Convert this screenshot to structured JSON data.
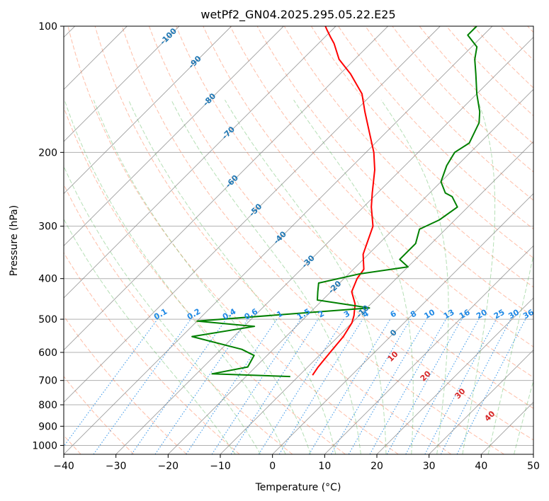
{
  "chart_data": {
    "type": "line",
    "title": "wetPf2_GN04.2025.295.05.22.E25",
    "xlabel": "Temperature (°C)",
    "ylabel": "Pressure (hPa)",
    "xlim": [
      -40,
      50
    ],
    "ylim": [
      1050,
      100
    ],
    "y_scale": "log",
    "grid": true,
    "x_ticks": [
      -40,
      -30,
      -20,
      -10,
      0,
      10,
      20,
      30,
      40,
      50
    ],
    "x_tick_labels": [
      "−40",
      "−30",
      "−20",
      "−10",
      "0",
      "10",
      "20",
      "30",
      "40",
      "50"
    ],
    "y_ticks": [
      100,
      200,
      300,
      400,
      500,
      600,
      700,
      800,
      900,
      1000
    ],
    "y_tick_labels": [
      "100",
      "200",
      "300",
      "400",
      "500",
      "600",
      "700",
      "800",
      "900",
      "1000"
    ],
    "series": [
      {
        "role": "temperature",
        "color": "#ff0000",
        "points": [
          [
            -7.5,
            680
          ],
          [
            -8,
            650
          ],
          [
            -8.5,
            600
          ],
          [
            -9,
            550
          ],
          [
            -10,
            510
          ],
          [
            -11,
            490
          ],
          [
            -13,
            460
          ],
          [
            -16,
            430
          ],
          [
            -17.5,
            400
          ],
          [
            -18,
            380
          ],
          [
            -21,
            350
          ],
          [
            -24.5,
            300
          ],
          [
            -28.5,
            270
          ],
          [
            -31,
            250
          ],
          [
            -35,
            220
          ],
          [
            -38.5,
            200
          ],
          [
            -43,
            180
          ],
          [
            -48,
            160
          ],
          [
            -52,
            145
          ],
          [
            -58,
            130
          ],
          [
            -63,
            120
          ],
          [
            -67,
            110
          ],
          [
            -69,
            106
          ],
          [
            -71,
            102
          ],
          [
            -72,
            100
          ]
        ]
      },
      {
        "role": "dewpoint",
        "color": "#008000",
        "points": [
          [
            -11.5,
            685
          ],
          [
            -27,
            675
          ],
          [
            -21.5,
            650
          ],
          [
            -22.5,
            610
          ],
          [
            -26,
            590
          ],
          [
            -38,
            550
          ],
          [
            -28,
            520
          ],
          [
            -40,
            505
          ],
          [
            -9.5,
            470
          ],
          [
            -21,
            450
          ],
          [
            -22.5,
            430
          ],
          [
            -24,
            410
          ],
          [
            -18,
            390
          ],
          [
            -10,
            375
          ],
          [
            -13,
            360
          ],
          [
            -13,
            330
          ],
          [
            -15,
            305
          ],
          [
            -13,
            290
          ],
          [
            -12,
            270
          ],
          [
            -15,
            255
          ],
          [
            -17,
            250
          ],
          [
            -20,
            235
          ],
          [
            -22,
            215
          ],
          [
            -23,
            200
          ],
          [
            -22,
            190
          ],
          [
            -24,
            170
          ],
          [
            -26,
            160
          ],
          [
            -30,
            145
          ],
          [
            -34,
            130
          ],
          [
            -37,
            120
          ],
          [
            -39,
            112
          ],
          [
            -43,
            105
          ],
          [
            -43,
            100
          ]
        ]
      }
    ],
    "isotherm_labels": [
      "-100",
      "-90",
      "-80",
      "-70",
      "-60",
      "-50",
      "-40",
      "-30",
      "-20",
      "-10",
      "0"
    ],
    "mixing_ratio_labels": [
      "0.1",
      "0.2",
      "0.4",
      "0.6",
      "1",
      "1.5",
      "2",
      "3",
      "4",
      "6",
      "8",
      "10",
      "13",
      "16",
      "20",
      "25",
      "30",
      "36"
    ],
    "moist_adiabat_labels": [
      "10",
      "20",
      "30",
      "40"
    ],
    "colors": {
      "isotherm": "#808080",
      "dry_adiabat": "#ff6f3f",
      "moist_adiabat": "#5cb85c",
      "mixing_ratio": "#1e88e5",
      "isotherm_label": "#1f77b4",
      "moist_label": "#d62728",
      "grid": "#b0b0b0"
    }
  }
}
